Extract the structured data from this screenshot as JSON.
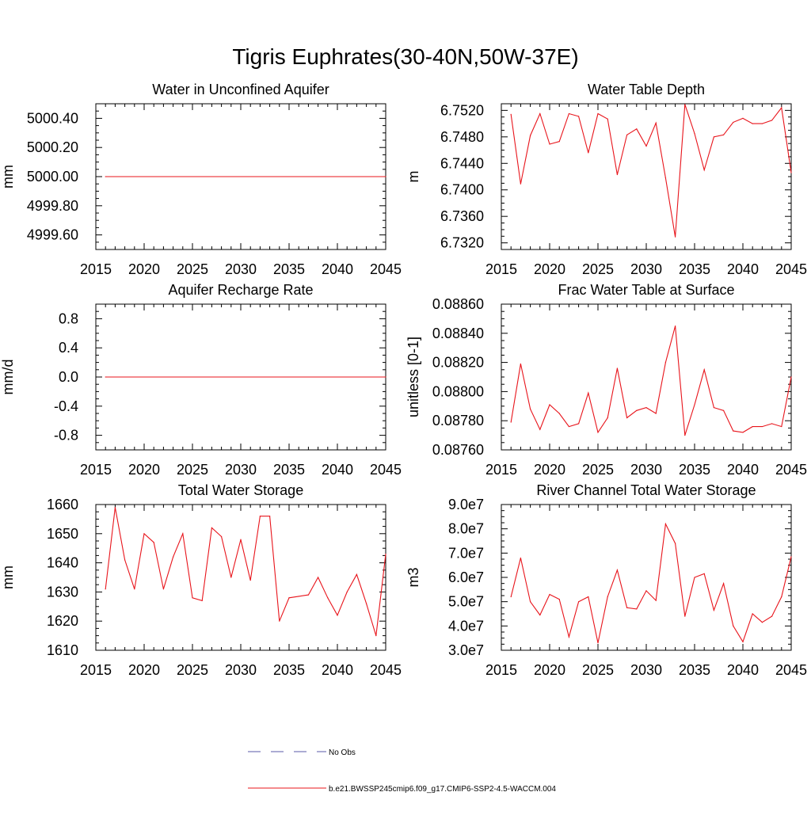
{
  "figure": {
    "title": "Tigris Euphrates(30-40N,50W-37E)",
    "line_color": "#e8141b",
    "axis_color": "#000000",
    "legend": {
      "obs_label": "No Obs",
      "obs_color": "#5a5aa8",
      "model_label": "b.e21.BWSSP245cmip6.f09_g17.CMIP6-SSP2-4.5-WACCM.004",
      "model_color": "#e8141b"
    }
  },
  "chart_data": [
    {
      "type": "line",
      "title": "Water in Unconfined Aquifer",
      "ylabel": "mm",
      "xlabel": "",
      "xlim": [
        2015,
        2045
      ],
      "ylim": [
        4999.5,
        5000.5
      ],
      "yticks": [
        4999.6,
        4999.8,
        5000.0,
        5000.2,
        5000.4
      ],
      "ytick_labels": [
        "4999.60",
        "4999.80",
        "5000.00",
        "5000.20",
        "5000.40"
      ],
      "xticks": [
        2015,
        2020,
        2025,
        2030,
        2035,
        2040,
        2045
      ],
      "xtick_labels": [
        "2015",
        "2020",
        "2025",
        "2030",
        "2035",
        "2040",
        "2045"
      ],
      "x": [
        2016,
        2045
      ],
      "values": [
        5000.0,
        5000.0
      ]
    },
    {
      "type": "line",
      "title": "Water Table Depth",
      "ylabel": "m",
      "xlabel": "",
      "xlim": [
        2015,
        2045
      ],
      "ylim": [
        6.731,
        6.753
      ],
      "yticks": [
        6.732,
        6.736,
        6.74,
        6.744,
        6.748,
        6.752
      ],
      "ytick_labels": [
        "6.7320",
        "6.7360",
        "6.7400",
        "6.7440",
        "6.7480",
        "6.7520"
      ],
      "xticks": [
        2015,
        2020,
        2025,
        2030,
        2035,
        2040,
        2045
      ],
      "xtick_labels": [
        "2015",
        "2020",
        "2025",
        "2030",
        "2035",
        "2040",
        "2045"
      ],
      "x": [
        2016,
        2017,
        2018,
        2019,
        2020,
        2021,
        2022,
        2023,
        2024,
        2025,
        2026,
        2027,
        2028,
        2029,
        2030,
        2031,
        2032,
        2033,
        2034,
        2035,
        2036,
        2037,
        2038,
        2039,
        2040,
        2041,
        2042,
        2043,
        2044,
        2045
      ],
      "values": [
        6.7514,
        6.7409,
        6.7482,
        6.7515,
        6.7469,
        6.7473,
        6.7515,
        6.7511,
        6.7456,
        6.7515,
        6.7507,
        6.7423,
        6.7483,
        6.7492,
        6.7466,
        6.7501,
        6.7418,
        6.7329,
        6.7529,
        6.7485,
        6.743,
        6.748,
        6.7483,
        6.7502,
        6.7508,
        6.75,
        6.75,
        6.7505,
        6.7524,
        6.7426
      ]
    },
    {
      "type": "line",
      "title": "Aquifer Recharge Rate",
      "ylabel": "mm/d",
      "xlabel": "",
      "xlim": [
        2015,
        2045
      ],
      "ylim": [
        -1.0,
        1.0
      ],
      "yticks": [
        -0.8,
        -0.4,
        0.0,
        0.4,
        0.8
      ],
      "ytick_labels": [
        "-0.8",
        "-0.4",
        "0.0",
        "0.4",
        "0.8"
      ],
      "xticks": [
        2015,
        2020,
        2025,
        2030,
        2035,
        2040,
        2045
      ],
      "xtick_labels": [
        "2015",
        "2020",
        "2025",
        "2030",
        "2035",
        "2040",
        "2045"
      ],
      "x": [
        2016,
        2045
      ],
      "values": [
        0.0,
        0.0
      ]
    },
    {
      "type": "line",
      "title": "Frac Water Table at Surface",
      "ylabel": "unitless [0-1]",
      "xlabel": "",
      "xlim": [
        2015,
        2045
      ],
      "ylim": [
        0.0876,
        0.0886
      ],
      "yticks": [
        0.0876,
        0.0878,
        0.088,
        0.0882,
        0.0884,
        0.0886
      ],
      "ytick_labels": [
        "0.08760",
        "0.08780",
        "0.08800",
        "0.08820",
        "0.08840",
        "0.08860"
      ],
      "xticks": [
        2015,
        2020,
        2025,
        2030,
        2035,
        2040,
        2045
      ],
      "xtick_labels": [
        "2015",
        "2020",
        "2025",
        "2030",
        "2035",
        "2040",
        "2045"
      ],
      "x": [
        2016,
        2017,
        2018,
        2019,
        2020,
        2021,
        2022,
        2023,
        2024,
        2025,
        2026,
        2027,
        2028,
        2029,
        2030,
        2031,
        2032,
        2033,
        2034,
        2035,
        2036,
        2037,
        2038,
        2039,
        2040,
        2041,
        2042,
        2043,
        2044,
        2045
      ],
      "values": [
        0.08779,
        0.08819,
        0.08788,
        0.08774,
        0.08791,
        0.08785,
        0.08776,
        0.08778,
        0.08799,
        0.08772,
        0.08782,
        0.08816,
        0.08782,
        0.08787,
        0.08789,
        0.08785,
        0.0882,
        0.08845,
        0.0877,
        0.08791,
        0.08815,
        0.08789,
        0.08787,
        0.08773,
        0.08772,
        0.08776,
        0.08776,
        0.08778,
        0.08776,
        0.0881
      ]
    },
    {
      "type": "line",
      "title": "Total Water Storage",
      "ylabel": "mm",
      "xlabel": "",
      "xlim": [
        2015,
        2045
      ],
      "ylim": [
        1610,
        1660
      ],
      "yticks": [
        1610,
        1620,
        1630,
        1640,
        1650,
        1660
      ],
      "ytick_labels": [
        "1610",
        "1620",
        "1630",
        "1640",
        "1650",
        "1660"
      ],
      "xticks": [
        2015,
        2020,
        2025,
        2030,
        2035,
        2040,
        2045
      ],
      "xtick_labels": [
        "2015",
        "2020",
        "2025",
        "2030",
        "2035",
        "2040",
        "2045"
      ],
      "x": [
        2016,
        2017,
        2018,
        2019,
        2020,
        2021,
        2022,
        2023,
        2024,
        2025,
        2026,
        2027,
        2028,
        2029,
        2030,
        2031,
        2032,
        2033,
        2034,
        2035,
        2036,
        2037,
        2038,
        2039,
        2040,
        2041,
        2042,
        2043,
        2044,
        2045
      ],
      "values": [
        1631,
        1659,
        1641,
        1631,
        1650,
        1647,
        1631,
        1642,
        1650,
        1628,
        1627,
        1652,
        1649,
        1635,
        1648,
        1634,
        1656,
        1656,
        1620,
        1628,
        1628.5,
        1629,
        1635,
        1628,
        1622,
        1630,
        1636,
        1626,
        1615,
        1643
      ]
    },
    {
      "type": "line",
      "title": "River Channel Total Water Storage",
      "ylabel": "m3",
      "xlabel": "",
      "xlim": [
        2015,
        2045
      ],
      "ylim": [
        30000000,
        90000000
      ],
      "yticks": [
        30000000,
        40000000,
        50000000,
        60000000,
        70000000,
        80000000,
        90000000
      ],
      "ytick_labels": [
        "3.0e7",
        "4.0e7",
        "5.0e7",
        "6.0e7",
        "7.0e7",
        "8.0e7",
        "9.0e7"
      ],
      "xticks": [
        2015,
        2020,
        2025,
        2030,
        2035,
        2040,
        2045
      ],
      "xtick_labels": [
        "2015",
        "2020",
        "2025",
        "2030",
        "2035",
        "2040",
        "2045"
      ],
      "x": [
        2016,
        2017,
        2018,
        2019,
        2020,
        2021,
        2022,
        2023,
        2024,
        2025,
        2026,
        2027,
        2028,
        2029,
        2030,
        2031,
        2032,
        2033,
        2034,
        2035,
        2036,
        2037,
        2038,
        2039,
        2040,
        2041,
        2042,
        2043,
        2044,
        2045
      ],
      "values": [
        52000000,
        68000000,
        50000000,
        44500000,
        53000000,
        51000000,
        35500000,
        50000000,
        52000000,
        33000000,
        52000000,
        63000000,
        47500000,
        47000000,
        54500000,
        50500000,
        82000000,
        74000000,
        44000000,
        60000000,
        61500000,
        46500000,
        57500000,
        40000000,
        33500000,
        45000000,
        41500000,
        44000000,
        52000000,
        68500000
      ]
    }
  ]
}
